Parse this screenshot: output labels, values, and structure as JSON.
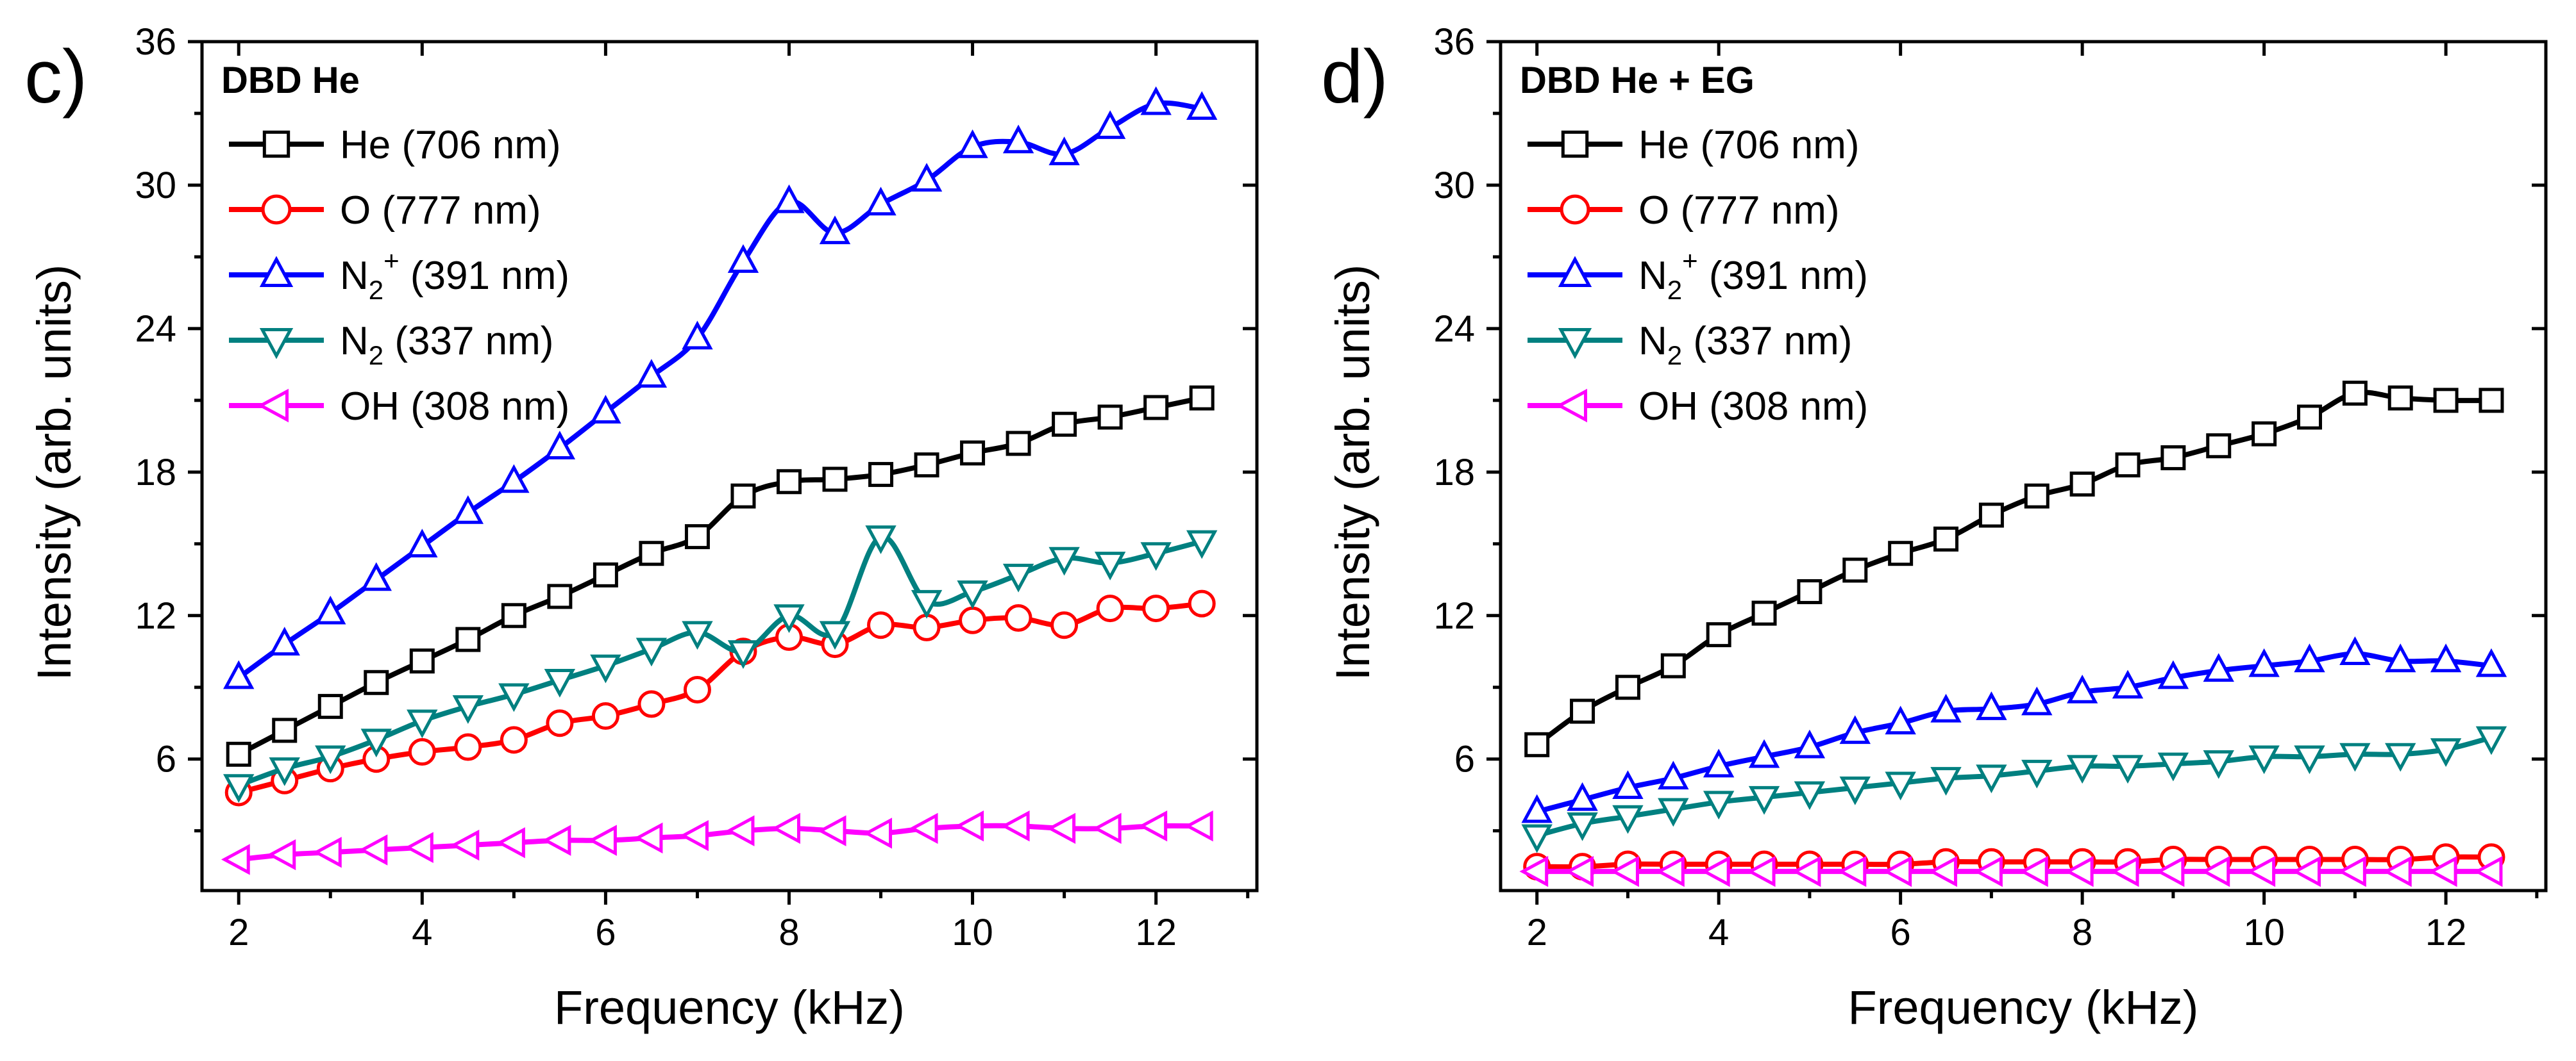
{
  "chart_data": [
    {
      "type": "line",
      "panel_label": "c)",
      "legend_title": "DBD He",
      "xlabel": "Frequency (kHz)",
      "ylabel": "Intensity (arb. units)",
      "xlim": [
        1.6,
        13.1
      ],
      "ylim": [
        0.5,
        36
      ],
      "xticks": [
        "2",
        "4",
        "6",
        "8",
        "10",
        "12"
      ],
      "yticks": [
        "6",
        "12",
        "18",
        "24",
        "30",
        "36"
      ],
      "x": [
        2,
        2.5,
        3,
        3.5,
        4,
        4.5,
        5,
        5.5,
        6,
        6.5,
        7,
        7.5,
        8,
        8.5,
        9,
        9.5,
        10,
        10.5,
        11,
        11.5,
        12,
        12.5
      ],
      "series": [
        {
          "name": "He (706 nm)",
          "label_main": "He (706 nm)",
          "label_rest": "",
          "color": "#000000",
          "marker": "square",
          "values": [
            6.2,
            7.2,
            8.2,
            9.2,
            10.1,
            11.0,
            12.0,
            12.8,
            13.7,
            14.6,
            15.3,
            17.0,
            17.6,
            17.7,
            17.9,
            18.3,
            18.8,
            19.2,
            20.0,
            20.3,
            20.7,
            21.1
          ]
        },
        {
          "name": "O (777 nm)",
          "label_main": "O (777 nm)",
          "label_rest": "",
          "color": "#ff0000",
          "marker": "circle",
          "values": [
            4.6,
            5.1,
            5.6,
            6.0,
            6.3,
            6.5,
            6.8,
            7.5,
            7.8,
            8.3,
            8.9,
            10.5,
            11.1,
            10.8,
            11.6,
            11.5,
            11.8,
            11.9,
            11.6,
            12.3,
            12.3,
            12.5
          ]
        },
        {
          "name": "N2+ (391 nm)",
          "label_main": "N",
          "label_sub": "2",
          "label_sup": "+",
          "label_rest": " (391 nm)",
          "color": "#0000ff",
          "marker": "triangle-up",
          "values": [
            9.4,
            10.8,
            12.1,
            13.5,
            14.9,
            16.3,
            17.6,
            19.0,
            20.5,
            22.0,
            23.6,
            26.8,
            29.3,
            28.0,
            29.2,
            30.2,
            31.6,
            31.8,
            31.3,
            32.4,
            33.4,
            33.2
          ]
        },
        {
          "name": "N2 (337 nm)",
          "label_main": "N",
          "label_sub": "2",
          "label_sup": "",
          "label_rest": " (337 nm)",
          "color": "#008080",
          "marker": "triangle-down",
          "values": [
            4.9,
            5.6,
            6.1,
            6.8,
            7.6,
            8.2,
            8.7,
            9.3,
            9.9,
            10.6,
            11.3,
            10.5,
            12.0,
            11.3,
            15.3,
            12.6,
            13.0,
            13.7,
            14.4,
            14.2,
            14.6,
            15.1
          ]
        },
        {
          "name": "OH (308 nm)",
          "label_main": "OH (308 nm)",
          "label_rest": "",
          "color": "#ff00ff",
          "marker": "triangle-left",
          "values": [
            1.8,
            2.0,
            2.1,
            2.2,
            2.3,
            2.4,
            2.5,
            2.6,
            2.6,
            2.7,
            2.8,
            3.0,
            3.1,
            3.0,
            2.9,
            3.1,
            3.2,
            3.2,
            3.1,
            3.1,
            3.2,
            3.2
          ]
        }
      ]
    },
    {
      "type": "line",
      "panel_label": "d)",
      "legend_title": "DBD He + EG",
      "xlabel": "Frequency (kHz)",
      "ylabel": "Intensity (arb. units)",
      "xlim": [
        1.6,
        13.1
      ],
      "ylim": [
        0.5,
        36
      ],
      "xticks": [
        "2",
        "4",
        "6",
        "8",
        "10",
        "12"
      ],
      "yticks": [
        "6",
        "12",
        "18",
        "24",
        "30",
        "36"
      ],
      "x": [
        2,
        2.5,
        3,
        3.5,
        4,
        4.5,
        5,
        5.5,
        6,
        6.5,
        7,
        7.5,
        8,
        8.5,
        9,
        9.5,
        10,
        10.5,
        11,
        11.5,
        12,
        12.5
      ],
      "series": [
        {
          "name": "He (706 nm)",
          "label_main": "He (706 nm)",
          "label_rest": "",
          "color": "#000000",
          "marker": "square",
          "values": [
            6.6,
            8.0,
            9.0,
            9.9,
            11.2,
            12.1,
            13.0,
            13.9,
            14.6,
            15.2,
            16.2,
            17.0,
            17.5,
            18.3,
            18.6,
            19.1,
            19.6,
            20.3,
            21.3,
            21.1,
            21.0,
            21.0
          ]
        },
        {
          "name": "O (777 nm)",
          "label_main": "O (777 nm)",
          "label_rest": "",
          "color": "#ff0000",
          "marker": "circle",
          "values": [
            1.5,
            1.5,
            1.6,
            1.6,
            1.6,
            1.6,
            1.6,
            1.6,
            1.6,
            1.7,
            1.7,
            1.7,
            1.7,
            1.7,
            1.8,
            1.8,
            1.8,
            1.8,
            1.8,
            1.8,
            1.9,
            1.9
          ]
        },
        {
          "name": "N2+ (391 nm)",
          "label_main": "N",
          "label_sub": "2",
          "label_sup": "+",
          "label_rest": " (391 nm)",
          "color": "#0000ff",
          "marker": "triangle-up",
          "values": [
            3.8,
            4.3,
            4.8,
            5.2,
            5.7,
            6.1,
            6.5,
            7.1,
            7.5,
            8.0,
            8.1,
            8.3,
            8.8,
            9.0,
            9.4,
            9.7,
            9.9,
            10.1,
            10.4,
            10.1,
            10.1,
            9.9
          ]
        },
        {
          "name": "N2 (337 nm)",
          "label_main": "N",
          "label_sub": "2",
          "label_sup": "",
          "label_rest": " (337 nm)",
          "color": "#008080",
          "marker": "triangle-down",
          "values": [
            2.8,
            3.3,
            3.6,
            3.9,
            4.2,
            4.4,
            4.6,
            4.8,
            5.0,
            5.2,
            5.3,
            5.5,
            5.7,
            5.7,
            5.8,
            5.9,
            6.1,
            6.1,
            6.2,
            6.2,
            6.4,
            6.9
          ]
        },
        {
          "name": "OH (308 nm)",
          "label_main": "OH (308 nm)",
          "label_rest": "",
          "color": "#ff00ff",
          "marker": "triangle-left",
          "values": [
            1.3,
            1.3,
            1.3,
            1.3,
            1.3,
            1.3,
            1.3,
            1.3,
            1.3,
            1.3,
            1.3,
            1.3,
            1.3,
            1.3,
            1.3,
            1.3,
            1.3,
            1.3,
            1.3,
            1.3,
            1.3,
            1.3
          ]
        }
      ]
    }
  ]
}
